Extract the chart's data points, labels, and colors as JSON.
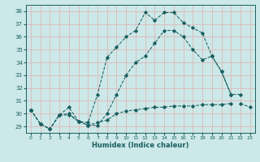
{
  "xlabel": "Humidex (Indice chaleur)",
  "ylabel": "",
  "bg_color": "#cce8e8",
  "grid_color": "#ddb8b8",
  "line_color": "#1a5f5f",
  "xlim": [
    -0.5,
    23.5
  ],
  "ylim": [
    28.5,
    38.5
  ],
  "xticks": [
    0,
    1,
    2,
    3,
    4,
    5,
    6,
    7,
    8,
    9,
    10,
    11,
    12,
    13,
    14,
    15,
    16,
    17,
    18,
    19,
    20,
    21,
    22,
    23
  ],
  "yticks": [
    29,
    30,
    31,
    32,
    33,
    34,
    35,
    36,
    37,
    38
  ],
  "series": [
    [
      30.3,
      29.2,
      28.8,
      29.9,
      30.5,
      29.4,
      29.3,
      31.5,
      34.4,
      35.2,
      36.0,
      36.5,
      37.9,
      37.3,
      37.9,
      37.9,
      37.1,
      36.7,
      36.3,
      34.5,
      33.3,
      31.5,
      null,
      null
    ],
    [
      30.3,
      29.2,
      28.8,
      29.9,
      30.0,
      29.4,
      29.1,
      29.3,
      29.5,
      30.0,
      30.2,
      30.3,
      30.4,
      30.5,
      30.5,
      30.6,
      30.6,
      30.6,
      30.7,
      30.7,
      30.7,
      30.8,
      null,
      null
    ],
    [
      30.3,
      29.2,
      28.8,
      29.9,
      29.9,
      29.4,
      29.1,
      29.1,
      30.0,
      31.5,
      33.0,
      34.0,
      34.5,
      35.5,
      36.5,
      36.5,
      36.0,
      35.0,
      34.2,
      34.5,
      33.3,
      31.5,
      31.5,
      null
    ],
    [
      30.3,
      null,
      null,
      null,
      null,
      null,
      null,
      null,
      null,
      null,
      null,
      null,
      null,
      null,
      null,
      null,
      null,
      null,
      null,
      null,
      null,
      null,
      30.8,
      30.5
    ]
  ]
}
